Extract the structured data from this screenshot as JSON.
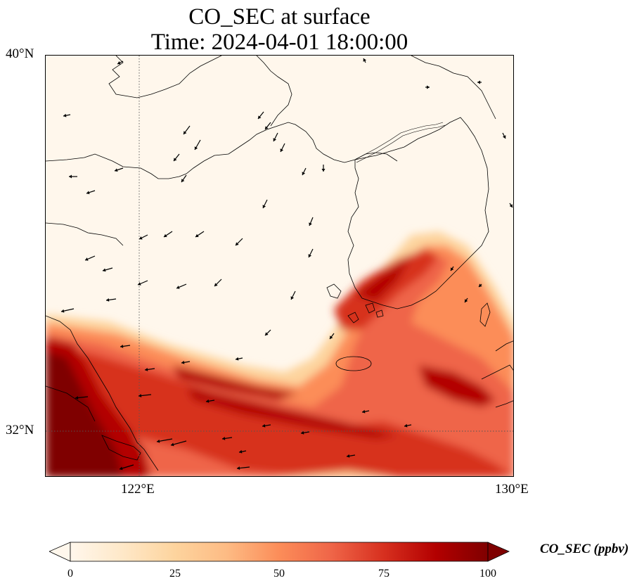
{
  "title": {
    "line1": "CO_SEC at surface",
    "line2": "Time: 2024-04-01 18:00:00"
  },
  "axes": {
    "lat_ticks": [
      "40°N",
      "32°N"
    ],
    "lon_ticks": [
      "122°E",
      "130°E"
    ],
    "lon_range": [
      120,
      130
    ],
    "lat_range": [
      31,
      40
    ],
    "gridlines": "dotted at 122°E and 32°N"
  },
  "colorbar": {
    "label": "CO_SEC (ppbv)",
    "ticks": [
      "0",
      "25",
      "50",
      "75",
      "100"
    ],
    "range": [
      0,
      100
    ],
    "colormap": "OrRd",
    "extend": "both",
    "colors": [
      "#fff7ec",
      "#fee8c8",
      "#fdd49e",
      "#fdbb84",
      "#fc8d59",
      "#ef6548",
      "#d7301f",
      "#b30000",
      "#7f0000"
    ]
  },
  "map": {
    "variable": "CO_SEC",
    "level": "surface",
    "features": [
      "coastlines",
      "country borders",
      "wind vectors"
    ],
    "plume_description": "high CO_SEC along Yangtze delta and East China Sea, extending NE across Yellow Sea toward southwest Korea; low values over north"
  }
}
